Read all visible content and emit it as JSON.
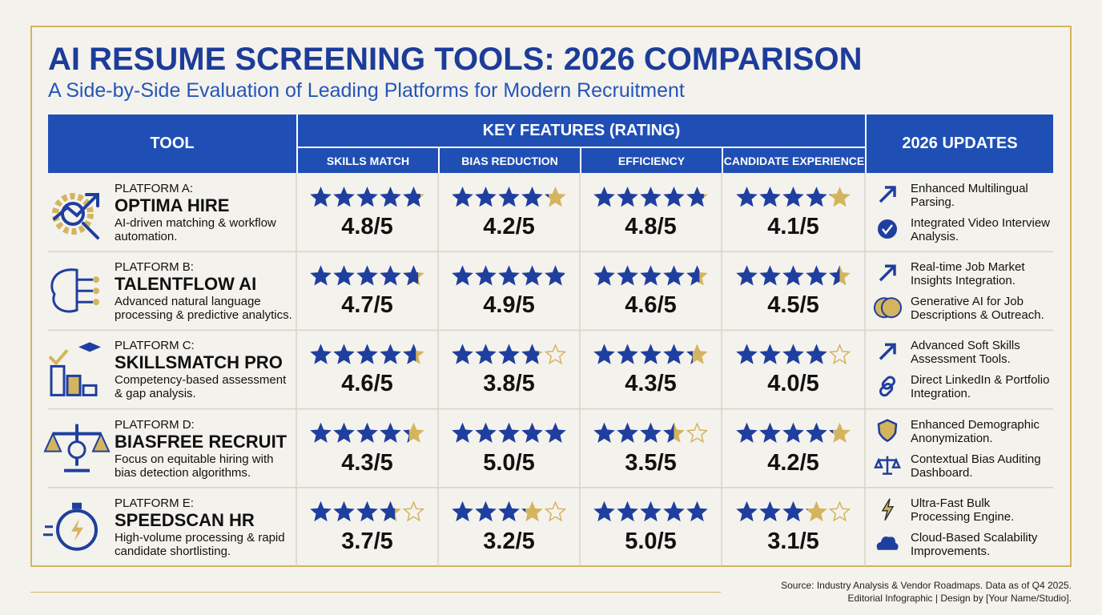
{
  "title": "AI RESUME SCREENING TOOLS: 2026 COMPARISON",
  "subtitle": "A Side-by-Side Evaluation of Leading Platforms for Modern Recruitment",
  "table": {
    "header": {
      "tool": "TOOL",
      "features": "KEY FEATURES (RATING)",
      "updates": "2026 UPDATES",
      "feature_columns": [
        "SKILLS MATCH",
        "BIAS REDUCTION",
        "EFFICIENCY",
        "CANDIDATE EXPERIENCE"
      ]
    },
    "rows": [
      {
        "platform": "PLATFORM A:",
        "name": "OPTIMA HIRE",
        "description": "AI-driven matching & workflow automation.",
        "ratings": [
          {
            "value": 4.8,
            "label": "4.8/5"
          },
          {
            "value": 4.2,
            "label": "4.2/5"
          },
          {
            "value": 4.8,
            "label": "4.8/5"
          },
          {
            "value": 4.1,
            "label": "4.1/5"
          }
        ],
        "updates": [
          "Enhanced Multilingual Parsing.",
          "Integrated Video Interview Analysis."
        ]
      },
      {
        "platform": "PLATFORM B:",
        "name": "TALENTFLOW AI",
        "description": "Advanced natural language processing & predictive analytics.",
        "ratings": [
          {
            "value": 4.7,
            "label": "4.7/5"
          },
          {
            "value": 4.9,
            "label": "4.9/5"
          },
          {
            "value": 4.6,
            "label": "4.6/5"
          },
          {
            "value": 4.5,
            "label": "4.5/5"
          }
        ],
        "updates": [
          "Real-time Job Market Insights Integration.",
          "Generative AI for Job Descriptions & Outreach."
        ]
      },
      {
        "platform": "PLATFORM C:",
        "name": "SKILLSMATCH PRO",
        "description": "Competency-based assessment & gap analysis.",
        "ratings": [
          {
            "value": 4.6,
            "label": "4.6/5"
          },
          {
            "value": 3.8,
            "label": "3.8/5"
          },
          {
            "value": 4.3,
            "label": "4.3/5"
          },
          {
            "value": 4.0,
            "label": "4.0/5"
          }
        ],
        "updates": [
          "Advanced Soft Skills Assessment Tools.",
          "Direct LinkedIn & Portfolio Integration."
        ]
      },
      {
        "platform": "PLATFORM D:",
        "name": "BIASFREE RECRUIT",
        "description": "Focus on equitable hiring with bias detection algorithms.",
        "ratings": [
          {
            "value": 4.3,
            "label": "4.3/5"
          },
          {
            "value": 5.0,
            "label": "5.0/5"
          },
          {
            "value": 3.5,
            "label": "3.5/5"
          },
          {
            "value": 4.2,
            "label": "4.2/5"
          }
        ],
        "updates": [
          "Enhanced Demographic Anonymization.",
          "Contextual Bias Auditing Dashboard."
        ]
      },
      {
        "platform": "PLATFORM E:",
        "name": "SPEEDSCAN HR",
        "description": "High-volume processing & rapid candidate shortlisting.",
        "ratings": [
          {
            "value": 3.7,
            "label": "3.7/5"
          },
          {
            "value": 3.2,
            "label": "3.2/5"
          },
          {
            "value": 5.0,
            "label": "5.0/5"
          },
          {
            "value": 3.1,
            "label": "3.1/5"
          }
        ],
        "updates": [
          "Ultra-Fast Bulk Processing Engine.",
          "Cloud-Based Scalability Improvements."
        ]
      }
    ]
  },
  "footer": {
    "source": "Source: Industry Analysis & Vendor Roadmaps. Data as of Q4 2025.",
    "credit": "Editorial Infographic | Design by [Your Name/Studio]."
  }
}
